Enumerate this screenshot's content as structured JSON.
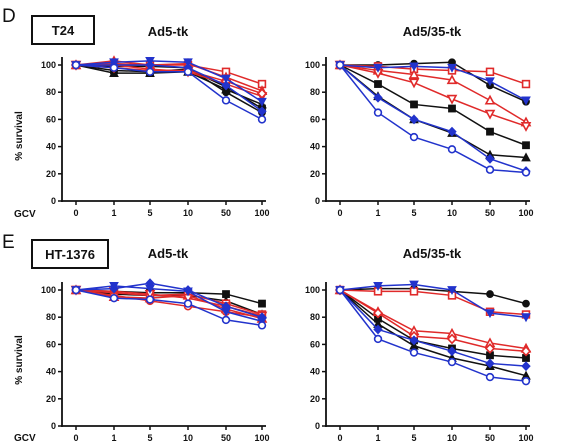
{
  "panels": [
    {
      "letter": "D",
      "cell_line": "T24"
    },
    {
      "letter": "E",
      "cell_line": "HT-1376"
    }
  ],
  "x_axis_prefix": "GCV",
  "colors": {
    "black": "#111111",
    "red": "#e02a2a",
    "blue": "#2233cc"
  },
  "chart_data": [
    {
      "type": "line",
      "panel": "D",
      "title": "Ad5-tk",
      "categories": [
        "0",
        "1",
        "5",
        "10",
        "50",
        "100"
      ],
      "ylabel": "% survival",
      "ylim": [
        0,
        100
      ],
      "yticks": [
        0,
        20,
        40,
        60,
        80,
        100
      ],
      "grid": false,
      "series": [
        {
          "color": "black",
          "marker": "square",
          "values": [
            100,
            96,
            95,
            97,
            84,
            68
          ]
        },
        {
          "color": "black",
          "marker": "triangle",
          "values": [
            100,
            94,
            94,
            95,
            82,
            71
          ]
        },
        {
          "color": "black",
          "marker": "circle",
          "values": [
            100,
            99,
            99,
            98,
            80,
            65
          ]
        },
        {
          "color": "red",
          "marker": "square-open",
          "values": [
            100,
            101,
            100,
            100,
            95,
            86
          ]
        },
        {
          "color": "red",
          "marker": "triangle-open",
          "values": [
            100,
            103,
            100,
            101,
            91,
            81
          ]
        },
        {
          "color": "red",
          "marker": "triangle-down-open",
          "values": [
            100,
            100,
            97,
            95,
            86,
            77
          ]
        },
        {
          "color": "red",
          "marker": "diamond-open",
          "values": [
            100,
            98,
            96,
            96,
            88,
            79
          ]
        },
        {
          "color": "blue",
          "marker": "triangle-down",
          "values": [
            100,
            102,
            103,
            102,
            90,
            73
          ]
        },
        {
          "color": "blue",
          "marker": "diamond",
          "values": [
            100,
            100,
            100,
            98,
            85,
            66
          ]
        },
        {
          "color": "blue",
          "marker": "circle-open",
          "values": [
            100,
            98,
            95,
            95,
            74,
            60
          ]
        }
      ]
    },
    {
      "type": "line",
      "panel": "D",
      "title": "Ad5/35-tk",
      "categories": [
        "0",
        "1",
        "5",
        "10",
        "50",
        "100"
      ],
      "ylim": [
        0,
        100
      ],
      "yticks": [
        0,
        20,
        40,
        60,
        80,
        100
      ],
      "grid": false,
      "series": [
        {
          "color": "black",
          "marker": "circle",
          "values": [
            100,
            100,
            101,
            102,
            85,
            73
          ]
        },
        {
          "color": "black",
          "marker": "square",
          "values": [
            100,
            86,
            71,
            68,
            51,
            41
          ]
        },
        {
          "color": "black",
          "marker": "triangle",
          "values": [
            100,
            77,
            60,
            50,
            34,
            32
          ]
        },
        {
          "color": "red",
          "marker": "square-open",
          "values": [
            100,
            99,
            97,
            96,
            95,
            86
          ]
        },
        {
          "color": "red",
          "marker": "triangle-open",
          "values": [
            100,
            96,
            93,
            89,
            74,
            58
          ]
        },
        {
          "color": "red",
          "marker": "triangle-down-open",
          "values": [
            100,
            94,
            87,
            75,
            64,
            55
          ]
        },
        {
          "color": "blue",
          "marker": "triangle-down",
          "values": [
            100,
            98,
            99,
            98,
            88,
            74
          ]
        },
        {
          "color": "blue",
          "marker": "diamond",
          "values": [
            100,
            76,
            60,
            51,
            31,
            22
          ]
        },
        {
          "color": "blue",
          "marker": "circle-open",
          "values": [
            100,
            65,
            47,
            38,
            23,
            21
          ]
        }
      ]
    },
    {
      "type": "line",
      "panel": "E",
      "title": "Ad5-tk",
      "categories": [
        "0",
        "1",
        "5",
        "10",
        "50",
        "100"
      ],
      "ylabel": "% survival",
      "ylim": [
        0,
        100
      ],
      "yticks": [
        0,
        20,
        40,
        60,
        80,
        100
      ],
      "grid": false,
      "series": [
        {
          "color": "black",
          "marker": "square",
          "values": [
            100,
            99,
            98,
            98,
            97,
            90
          ]
        },
        {
          "color": "black",
          "marker": "triangle",
          "values": [
            100,
            97,
            96,
            96,
            92,
            82
          ]
        },
        {
          "color": "red",
          "marker": "square-open",
          "values": [
            100,
            98,
            96,
            97,
            90,
            82
          ]
        },
        {
          "color": "red",
          "marker": "triangle-open",
          "values": [
            100,
            95,
            94,
            96,
            86,
            79
          ]
        },
        {
          "color": "red",
          "marker": "circle-open",
          "values": [
            100,
            96,
            92,
            88,
            84,
            80
          ]
        },
        {
          "color": "red",
          "marker": "triangle-down-open",
          "values": [
            100,
            99,
            97,
            94,
            88,
            81
          ]
        },
        {
          "color": "blue",
          "marker": "diamond",
          "values": [
            100,
            101,
            105,
            100,
            88,
            80
          ]
        },
        {
          "color": "blue",
          "marker": "triangle-down",
          "values": [
            100,
            103,
            101,
            99,
            84,
            77
          ]
        },
        {
          "color": "blue",
          "marker": "circle-open",
          "values": [
            100,
            94,
            93,
            90,
            78,
            74
          ]
        }
      ]
    },
    {
      "type": "line",
      "panel": "E",
      "title": "Ad5/35-tk",
      "categories": [
        "0",
        "1",
        "5",
        "10",
        "50",
        "100"
      ],
      "ylim": [
        0,
        100
      ],
      "yticks": [
        0,
        20,
        40,
        60,
        80,
        100
      ],
      "grid": false,
      "series": [
        {
          "color": "black",
          "marker": "circle",
          "values": [
            100,
            101,
            101,
            99,
            97,
            90
          ]
        },
        {
          "color": "black",
          "marker": "square",
          "values": [
            100,
            79,
            63,
            57,
            52,
            50
          ]
        },
        {
          "color": "black",
          "marker": "triangle",
          "values": [
            100,
            75,
            59,
            50,
            44,
            37
          ]
        },
        {
          "color": "red",
          "marker": "square-open",
          "values": [
            100,
            99,
            99,
            96,
            84,
            82
          ]
        },
        {
          "color": "red",
          "marker": "triangle-open",
          "values": [
            100,
            84,
            70,
            68,
            61,
            57
          ]
        },
        {
          "color": "red",
          "marker": "diamond-open",
          "values": [
            100,
            83,
            66,
            64,
            57,
            55
          ]
        },
        {
          "color": "blue",
          "marker": "triangle-down",
          "values": [
            100,
            103,
            104,
            100,
            83,
            80
          ]
        },
        {
          "color": "blue",
          "marker": "diamond",
          "values": [
            100,
            71,
            63,
            55,
            46,
            44
          ]
        },
        {
          "color": "blue",
          "marker": "circle-open",
          "values": [
            100,
            64,
            54,
            47,
            36,
            33
          ]
        }
      ]
    }
  ]
}
